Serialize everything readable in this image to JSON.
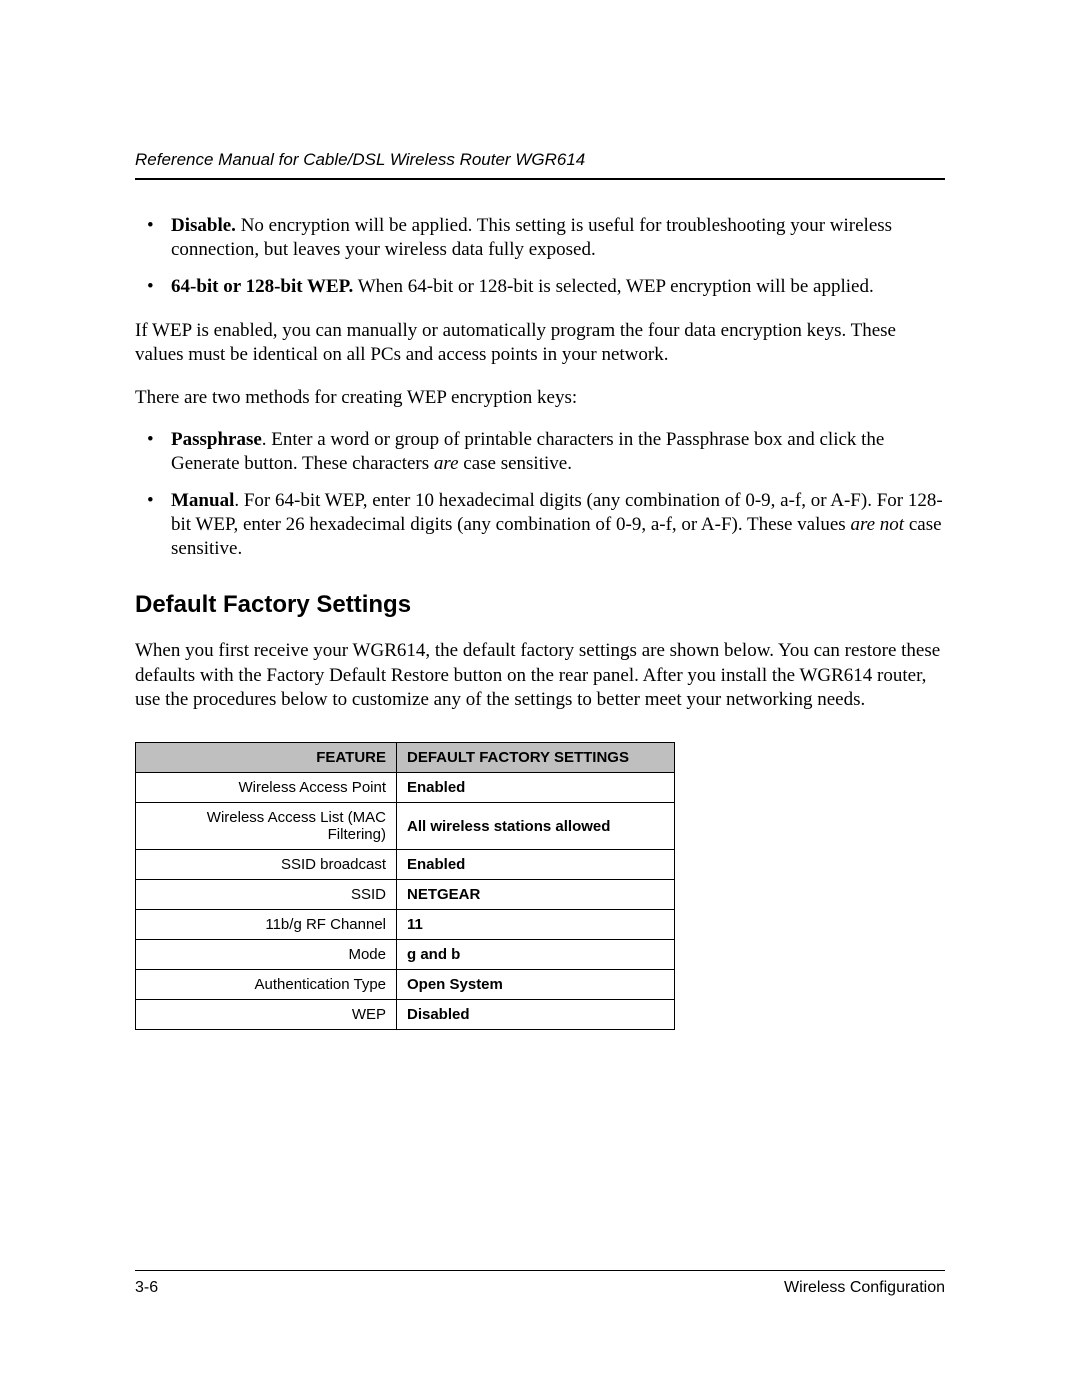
{
  "header": {
    "title": "Reference Manual for Cable/DSL Wireless Router WGR614"
  },
  "bullets1": {
    "items": [
      {
        "lead": "Disable.",
        "text": " No encryption will be applied. This setting is useful for troubleshooting your wireless connection, but leaves your wireless data fully exposed."
      },
      {
        "lead": "64-bit or 128-bit WEP.",
        "text": " When 64-bit or 128-bit is selected, WEP encryption will be applied."
      }
    ]
  },
  "para1": "If WEP is enabled, you can manually or automatically program the four data encryption keys. These values must be identical on all PCs and access points in your network.",
  "para2": "There are two methods for creating WEP encryption keys:",
  "bullets2": {
    "items": [
      {
        "lead": "Passphrase",
        "text1": ". Enter a word or group of printable characters in the Passphrase box and click the Generate button. These characters ",
        "italic": "are",
        "text2": " case sensitive."
      },
      {
        "lead": "Manual",
        "text1": ". For 64-bit WEP, enter 10 hexadecimal digits (any combination of 0-9, a-f, or A-F). For 128-bit WEP, enter 26 hexadecimal digits (any combination of 0-9, a-f, or A-F). These values ",
        "italic": "are not",
        "text2": " case sensitive."
      }
    ]
  },
  "section_heading": "Default Factory Settings",
  "para3": "When you first receive your WGR614, the default factory settings are shown below. You can restore these defaults with the Factory Default Restore button on the rear panel. After you install the WGR614 router, use the procedures below to customize any of the settings to better meet your networking needs.",
  "table": {
    "headers": {
      "feature": "FEATURE",
      "value": "DEFAULT FACTORY SETTINGS"
    },
    "rows": [
      {
        "feature": "Wireless Access Point",
        "value": "Enabled"
      },
      {
        "feature": "Wireless Access List (MAC Filtering)",
        "value": "All wireless stations allowed"
      },
      {
        "feature": "SSID broadcast",
        "value": "Enabled"
      },
      {
        "feature": "SSID",
        "value": "NETGEAR"
      },
      {
        "feature": "11b/g RF Channel",
        "value": "11"
      },
      {
        "feature": "Mode",
        "value": "g and b"
      },
      {
        "feature": "Authentication Type",
        "value": "Open System"
      },
      {
        "feature": "WEP",
        "value": "Disabled"
      }
    ]
  },
  "footer": {
    "page_number": "3-6",
    "section": "Wireless Configuration"
  }
}
